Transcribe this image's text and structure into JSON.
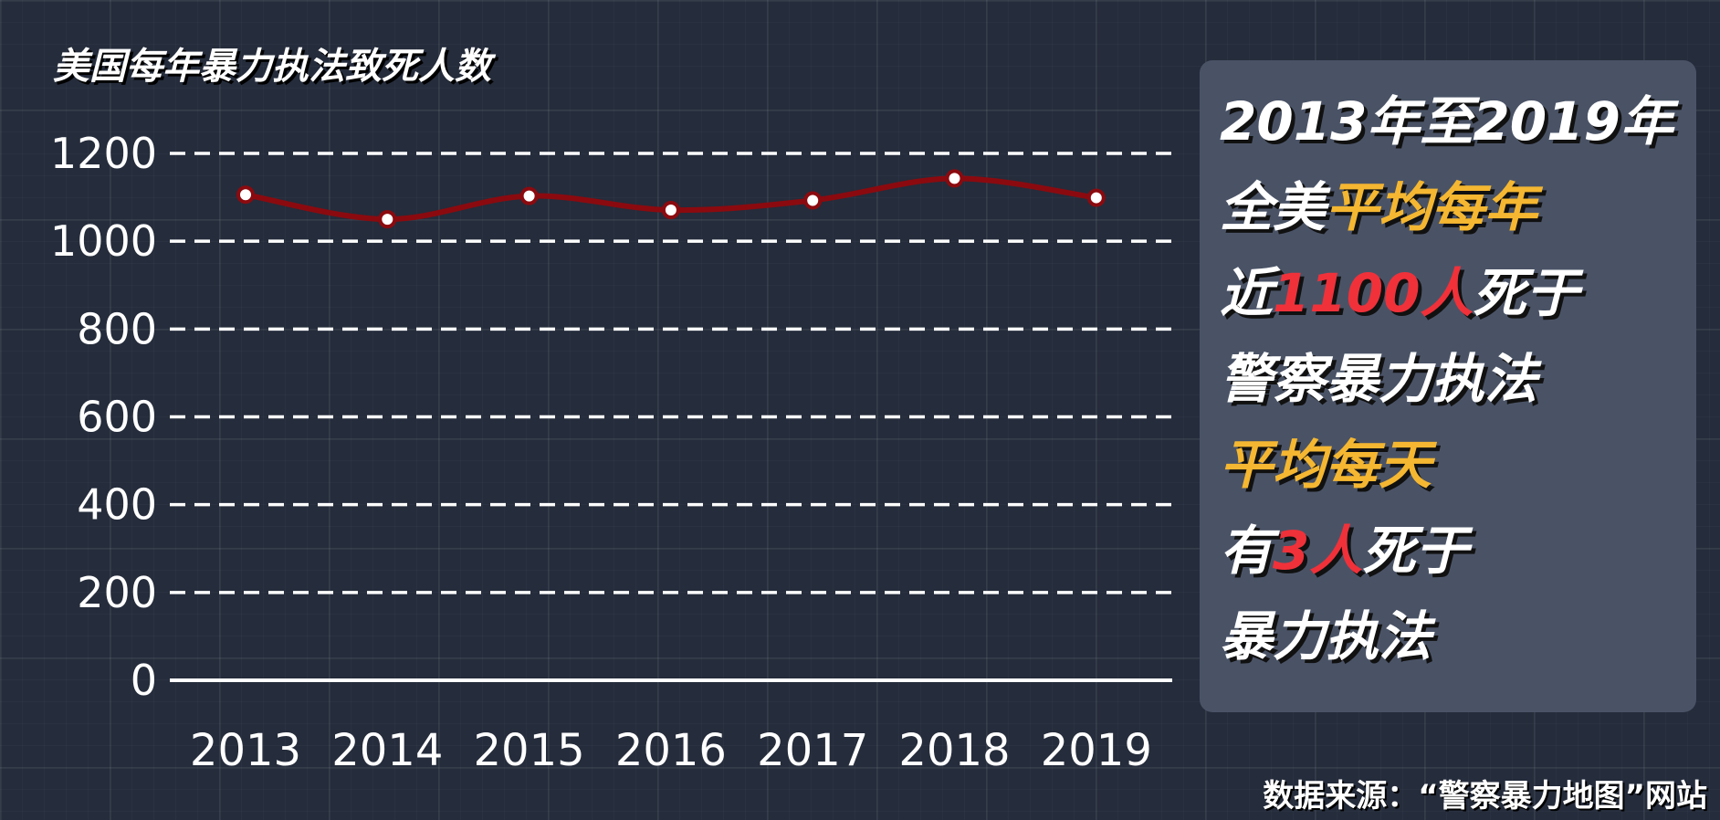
{
  "chart_data": {
    "type": "line",
    "title": "美国每年暴力执法致死人数",
    "categories": [
      "2013",
      "2014",
      "2015",
      "2016",
      "2017",
      "2018",
      "2019"
    ],
    "values": [
      1106,
      1050,
      1103,
      1071,
      1093,
      1143,
      1099
    ],
    "yticks": [
      "0",
      "200",
      "400",
      "600",
      "800",
      "1000",
      "1200"
    ],
    "ylim": [
      0,
      1200
    ],
    "grid": "horizontal dashed",
    "colors": {
      "line": "#8b0a0f",
      "marker_fill": "#ffffff",
      "grid": "#ffffff"
    }
  },
  "panel": {
    "l1": "2013年至2019年",
    "l2a": "全美",
    "l2b": "平均每年",
    "l3a": "近",
    "l3b": "1100人",
    "l3c": "死于",
    "l4": "警察暴力执法",
    "l5": "平均每天",
    "l6a": "有",
    "l6b": "3人",
    "l6c": "死于",
    "l7": "暴力执法",
    "colors": {
      "highlight_yellow": "#f5b731",
      "highlight_red": "#f0313a",
      "background": "#4a5366"
    }
  },
  "source": "数据来源：“警察暴力地图”网站"
}
